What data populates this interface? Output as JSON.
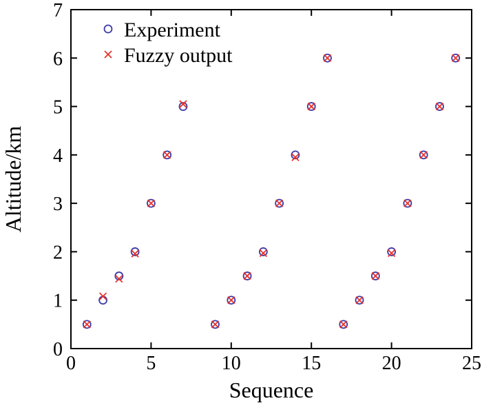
{
  "chart_data": {
    "type": "scatter",
    "title": "",
    "xlabel": "Sequence",
    "ylabel": "Altitude/km",
    "xlim": [
      0,
      25
    ],
    "ylim": [
      0,
      7
    ],
    "xticks": [
      "0",
      "5",
      "10",
      "15",
      "20",
      "25"
    ],
    "yticks": [
      "0",
      "1",
      "2",
      "3",
      "4",
      "5",
      "6",
      "7"
    ],
    "grid": false,
    "legend_position": "top-left",
    "series": [
      {
        "name": "Experiment",
        "marker": "circle",
        "color": "#3a3aa8",
        "points": [
          [
            1,
            0.5
          ],
          [
            2,
            1.0
          ],
          [
            3,
            1.5
          ],
          [
            4,
            2.0
          ],
          [
            5,
            3.0
          ],
          [
            6,
            4.0
          ],
          [
            7,
            5.0
          ],
          [
            9,
            0.5
          ],
          [
            10,
            1.0
          ],
          [
            11,
            1.5
          ],
          [
            12,
            2.0
          ],
          [
            13,
            3.0
          ],
          [
            14,
            4.0
          ],
          [
            15,
            5.0
          ],
          [
            16,
            6.0
          ],
          [
            17,
            0.5
          ],
          [
            18,
            1.0
          ],
          [
            19,
            1.5
          ],
          [
            20,
            2.0
          ],
          [
            21,
            3.0
          ],
          [
            22,
            4.0
          ],
          [
            23,
            5.0
          ],
          [
            24,
            6.0
          ]
        ]
      },
      {
        "name": "Fuzzy output",
        "marker": "x",
        "color": "#e8322a",
        "points": [
          [
            1,
            0.5
          ],
          [
            2,
            1.08
          ],
          [
            3,
            1.44
          ],
          [
            4,
            1.96
          ],
          [
            5,
            3.0
          ],
          [
            6,
            4.0
          ],
          [
            7,
            5.05
          ],
          [
            9,
            0.5
          ],
          [
            10,
            1.0
          ],
          [
            11,
            1.5
          ],
          [
            12,
            1.97
          ],
          [
            13,
            3.0
          ],
          [
            14,
            3.95
          ],
          [
            15,
            5.0
          ],
          [
            16,
            6.0
          ],
          [
            17,
            0.5
          ],
          [
            18,
            1.0
          ],
          [
            19,
            1.5
          ],
          [
            20,
            1.97
          ],
          [
            21,
            3.0
          ],
          [
            22,
            4.0
          ],
          [
            23,
            5.0
          ],
          [
            24,
            6.0
          ]
        ]
      }
    ]
  }
}
